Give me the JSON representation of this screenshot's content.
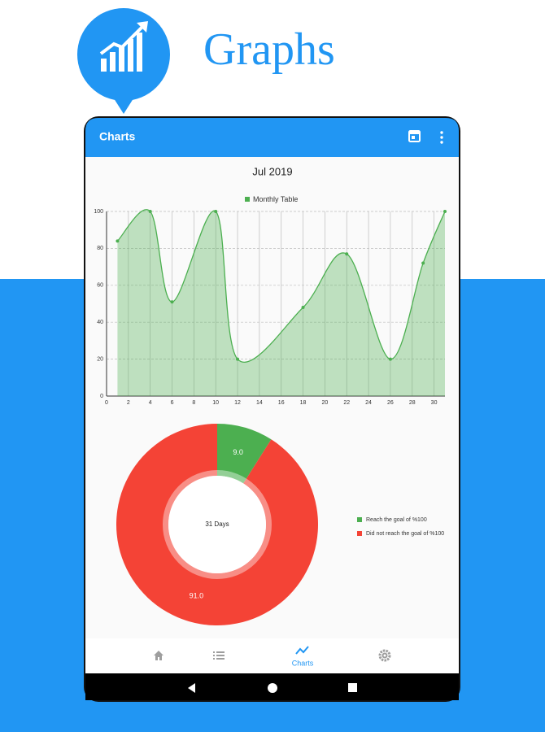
{
  "header": {
    "title": "Graphs"
  },
  "app_bar": {
    "title": "Charts"
  },
  "bottom_nav": {
    "active_label": "Charts"
  },
  "chart_data": [
    {
      "type": "line",
      "title": "Jul 2019",
      "x": [
        1,
        4,
        6,
        10,
        12,
        18,
        22,
        26,
        29,
        31
      ],
      "series": [
        {
          "name": "Monthly Table",
          "color": "#4caf50",
          "values": [
            84,
            100,
            51,
            100,
            20,
            48,
            77,
            20,
            72,
            100
          ]
        }
      ],
      "xlim": [
        0,
        31
      ],
      "ylim": [
        0,
        100
      ],
      "xticks": [
        0,
        2,
        4,
        6,
        8,
        10,
        12,
        14,
        16,
        18,
        20,
        22,
        24,
        26,
        28,
        30
      ],
      "yticks": [
        0,
        20,
        40,
        60,
        80,
        100
      ],
      "grid": true,
      "fill": true
    },
    {
      "type": "pie",
      "center_label": "31 Days",
      "categories": [
        "Reach the goal of %100",
        "Did not reach the goal of %100"
      ],
      "values": [
        9,
        91
      ],
      "value_labels": [
        "9.0",
        "91.0"
      ],
      "colors": [
        "#4caf50",
        "#f44336"
      ],
      "legend": "right"
    }
  ]
}
